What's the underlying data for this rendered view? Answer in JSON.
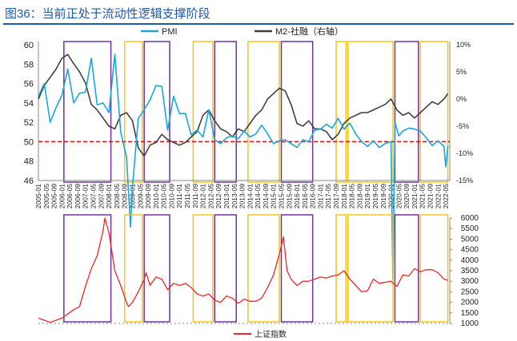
{
  "figure": {
    "title": "图36：当前正处于流动性逻辑支撑阶段"
  },
  "chart_data": [
    {
      "type": "line",
      "legend_position": "top",
      "series": [
        {
          "name": "PMI",
          "color": "#1aa7dc",
          "axis": "left"
        },
        {
          "name": "M2-社融（右轴）",
          "color": "#404040",
          "axis": "right"
        }
      ],
      "x_labels": [
        "2005-01",
        "2005-05",
        "2005-09",
        "2006-01",
        "2006-05",
        "2006-09",
        "2007-01",
        "2007-05",
        "2007-09",
        "2008-01",
        "2008-05",
        "2008-09",
        "2009-01",
        "2009-05",
        "2009-09",
        "2010-01",
        "2010-05",
        "2010-09",
        "2011-01",
        "2011-05",
        "2011-09",
        "2012-01",
        "2012-05",
        "2012-09",
        "2013-01",
        "2013-05",
        "2013-09",
        "2014-01",
        "2014-05",
        "2014-09",
        "2015-01",
        "2015-05",
        "2015-09",
        "2016-01",
        "2016-05",
        "2016-09",
        "2017-01",
        "2017-05",
        "2017-09",
        "2018-01",
        "2018-05",
        "2018-09",
        "2019-01",
        "2019-05",
        "2019-09",
        "2020-01",
        "2020-05",
        "2020-09",
        "2021-01",
        "2021-05",
        "2021-09",
        "2022-01",
        "2022-05"
      ],
      "ylim_left": [
        46,
        60
      ],
      "yticks_left": [
        "46",
        "48",
        "50",
        "52",
        "54",
        "56",
        "58",
        "60"
      ],
      "ylim_right": [
        -15,
        10
      ],
      "yticks_right": [
        "-15%",
        "-10%",
        "-5%",
        "0%",
        "5%",
        "10%"
      ],
      "reference_line": {
        "value": 50,
        "color": "#ff0000",
        "style": "dashed"
      },
      "pmi": {
        "x": [
          2005.0,
          2005.25,
          2005.5,
          2005.75,
          2006.0,
          2006.25,
          2006.5,
          2006.75,
          2007.0,
          2007.25,
          2007.5,
          2007.75,
          2008.0,
          2008.25,
          2008.5,
          2008.75,
          2008.92,
          2009.0,
          2009.25,
          2009.5,
          2009.75,
          2010.0,
          2010.25,
          2010.5,
          2010.75,
          2011.0,
          2011.25,
          2011.5,
          2011.75,
          2012.0,
          2012.25,
          2012.5,
          2012.75,
          2013.0,
          2013.25,
          2013.5,
          2013.75,
          2014.0,
          2014.25,
          2014.5,
          2014.75,
          2015.0,
          2015.25,
          2015.5,
          2015.75,
          2016.0,
          2016.25,
          2016.5,
          2016.75,
          2017.0,
          2017.25,
          2017.5,
          2017.75,
          2018.0,
          2018.25,
          2018.5,
          2018.75,
          2019.0,
          2019.25,
          2019.5,
          2019.75,
          2020.0,
          2020.08,
          2020.17,
          2020.33,
          2020.5,
          2020.75,
          2021.0,
          2021.25,
          2021.5,
          2021.75,
          2022.0,
          2022.25,
          2022.33,
          2022.42
        ],
        "y": [
          54.7,
          56.0,
          52.0,
          53.5,
          54.8,
          57.5,
          54.0,
          55.0,
          55.1,
          58.6,
          53.8,
          54.0,
          53.0,
          59.0,
          51.0,
          48.4,
          41.2,
          45.3,
          52.4,
          53.3,
          54.3,
          55.8,
          55.7,
          51.2,
          54.7,
          52.9,
          52.9,
          50.7,
          51.2,
          50.5,
          53.3,
          50.2,
          49.8,
          50.4,
          50.6,
          50.3,
          51.1,
          50.5,
          50.8,
          51.7,
          50.8,
          49.8,
          50.1,
          50.2,
          49.8,
          49.4,
          50.2,
          50.0,
          51.2,
          51.3,
          51.8,
          51.4,
          52.4,
          51.3,
          51.9,
          50.8,
          50.0,
          49.5,
          50.1,
          49.4,
          49.8,
          50.0,
          35.7,
          52.0,
          50.6,
          51.1,
          51.4,
          51.3,
          51.1,
          50.4,
          49.6,
          50.1,
          49.5,
          47.4,
          49.6
        ]
      },
      "m2_minus_social_financing": {
        "x": [
          2005.0,
          2005.25,
          2005.5,
          2005.75,
          2006.0,
          2006.25,
          2006.5,
          2006.75,
          2007.0,
          2007.25,
          2007.5,
          2007.75,
          2008.0,
          2008.25,
          2008.5,
          2008.75,
          2009.0,
          2009.25,
          2009.5,
          2009.75,
          2010.0,
          2010.25,
          2010.5,
          2010.75,
          2011.0,
          2011.25,
          2011.5,
          2011.75,
          2012.0,
          2012.25,
          2012.5,
          2012.75,
          2013.0,
          2013.25,
          2013.5,
          2013.75,
          2014.0,
          2014.25,
          2014.5,
          2014.75,
          2015.0,
          2015.25,
          2015.5,
          2015.75,
          2016.0,
          2016.25,
          2016.5,
          2016.75,
          2017.0,
          2017.25,
          2017.5,
          2017.75,
          2018.0,
          2018.25,
          2018.5,
          2018.75,
          2019.0,
          2019.25,
          2019.5,
          2019.75,
          2020.0,
          2020.25,
          2020.5,
          2020.75,
          2021.0,
          2021.25,
          2021.5,
          2021.75,
          2022.0,
          2022.25,
          2022.42
        ],
        "y": [
          0.0,
          2.5,
          4.0,
          5.5,
          7.5,
          8.2,
          6.5,
          5.0,
          3.0,
          -1.0,
          -2.0,
          -3.5,
          -5.0,
          -5.5,
          -3.0,
          -2.5,
          -4.0,
          -9.0,
          -10.5,
          -8.5,
          -8.0,
          -6.5,
          -7.5,
          -8.0,
          -8.5,
          -8.0,
          -7.0,
          -6.0,
          -3.0,
          -2.0,
          -4.0,
          -5.5,
          -6.0,
          -7.0,
          -5.5,
          -6.0,
          -4.5,
          -3.0,
          -2.0,
          0.0,
          1.0,
          2.0,
          1.5,
          -1.0,
          -4.5,
          -5.0,
          -4.0,
          -5.5,
          -5.5,
          -6.0,
          -7.5,
          -6.5,
          -4.5,
          -3.5,
          -3.0,
          -2.5,
          -2.5,
          -2.0,
          -1.5,
          -1.0,
          0.0,
          -2.0,
          -3.0,
          -2.5,
          -3.5,
          -2.5,
          -1.5,
          -0.5,
          -1.0,
          0.0,
          1.0
        ]
      }
    },
    {
      "type": "line",
      "legend_position": "bottom",
      "series": [
        {
          "name": "上证指数",
          "color": "#e82a2a"
        }
      ],
      "ylim": [
        1000,
        6000
      ],
      "yticks": [
        "1000",
        "1500",
        "2000",
        "2500",
        "3000",
        "3500",
        "4000",
        "4500",
        "5000",
        "5500",
        "6000"
      ],
      "x": [
        2005.0,
        2005.25,
        2005.5,
        2005.75,
        2006.0,
        2006.25,
        2006.5,
        2006.75,
        2007.0,
        2007.25,
        2007.5,
        2007.75,
        2007.83,
        2008.0,
        2008.25,
        2008.5,
        2008.75,
        2008.83,
        2009.0,
        2009.25,
        2009.5,
        2009.58,
        2009.75,
        2010.0,
        2010.25,
        2010.5,
        2010.75,
        2011.0,
        2011.25,
        2011.5,
        2011.75,
        2012.0,
        2012.25,
        2012.5,
        2012.75,
        2013.0,
        2013.25,
        2013.5,
        2013.75,
        2014.0,
        2014.25,
        2014.5,
        2014.75,
        2015.0,
        2015.25,
        2015.42,
        2015.58,
        2015.75,
        2016.0,
        2016.25,
        2016.5,
        2016.75,
        2017.0,
        2017.25,
        2017.5,
        2017.75,
        2018.0,
        2018.25,
        2018.5,
        2018.75,
        2019.0,
        2019.25,
        2019.5,
        2019.75,
        2020.0,
        2020.25,
        2020.5,
        2020.75,
        2021.0,
        2021.25,
        2021.5,
        2021.75,
        2022.0,
        2022.25,
        2022.42
      ],
      "y": [
        1250,
        1150,
        1050,
        1150,
        1250,
        1450,
        1650,
        1800,
        2750,
        3600,
        4200,
        5400,
        6000,
        5300,
        3500,
        2800,
        2000,
        1800,
        2000,
        2500,
        3100,
        3400,
        2800,
        3200,
        3100,
        2600,
        2900,
        2800,
        2900,
        2700,
        2400,
        2300,
        2400,
        2100,
        2000,
        2300,
        2200,
        1950,
        2150,
        2050,
        2050,
        2200,
        2700,
        3300,
        4300,
        5100,
        3500,
        3100,
        2800,
        3000,
        3000,
        3100,
        3200,
        3150,
        3250,
        3300,
        3500,
        3100,
        2800,
        2500,
        2550,
        3100,
        2900,
        2950,
        3000,
        2750,
        3300,
        3250,
        3600,
        3450,
        3550,
        3550,
        3400,
        3100,
        3050
      ]
    }
  ],
  "highlight_periods": [
    {
      "start": "2006-02",
      "end": "2008-02",
      "color": "#7030a0"
    },
    {
      "start": "2008-09",
      "end": "2009-06",
      "color": "#f5c518"
    },
    {
      "start": "2009-07",
      "end": "2010-08",
      "color": "#7030a0"
    },
    {
      "start": "2011-08",
      "end": "2012-06",
      "color": "#f5c518"
    },
    {
      "start": "2012-07",
      "end": "2013-06",
      "color": "#7030a0"
    },
    {
      "start": "2013-12",
      "end": "2015-04",
      "color": "#f5c518"
    },
    {
      "start": "2015-05",
      "end": "2016-09",
      "color": "#7030a0"
    },
    {
      "start": "2017-09",
      "end": "2018-02",
      "color": "#f5c518"
    },
    {
      "start": "2018-03",
      "end": "2020-02",
      "color": "#f5c518"
    },
    {
      "start": "2020-03",
      "end": "2021-03",
      "color": "#7030a0"
    },
    {
      "start": "2021-04",
      "end": "2022-06",
      "color": "#f5c518"
    }
  ]
}
